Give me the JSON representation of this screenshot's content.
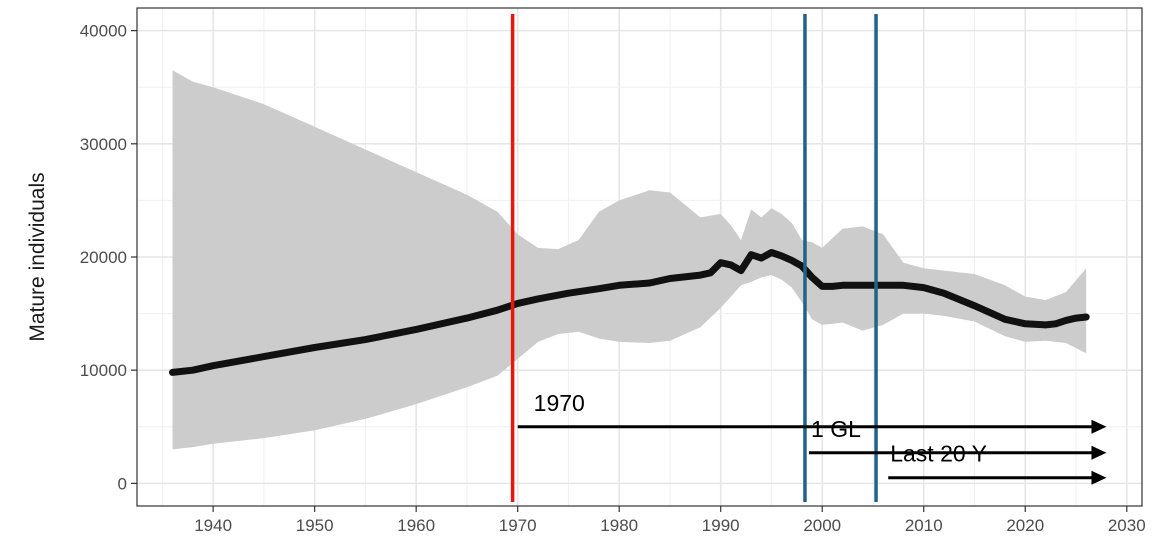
{
  "chart_data": {
    "type": "line",
    "title": "",
    "xlabel": "",
    "ylabel": "Mature individuals",
    "xlim": [
      1932.5,
      2031.5
    ],
    "ylim": [
      -2000,
      42000
    ],
    "grid": true,
    "x_ticks": [
      1940,
      1950,
      1960,
      1970,
      1980,
      1990,
      2000,
      2010,
      2020,
      2030
    ],
    "y_ticks": [
      0,
      10000,
      20000,
      30000,
      40000
    ],
    "series": [
      {
        "kind": "median",
        "color": "#000000",
        "x": [
          1936,
          1938,
          1940,
          1945,
          1950,
          1955,
          1960,
          1965,
          1968,
          1970,
          1972,
          1975,
          1978,
          1980,
          1983,
          1985,
          1988,
          1989,
          1990,
          1991,
          1992,
          1993,
          1994,
          1995,
          1996,
          1997,
          1998,
          1999,
          2000,
          2001,
          2002,
          2004,
          2006,
          2008,
          2010,
          2012,
          2015,
          2018,
          2020,
          2022,
          2023,
          2024,
          2025,
          2026
        ],
        "y": [
          9800,
          10000,
          10400,
          11200,
          12000,
          12700,
          13600,
          14600,
          15300,
          15900,
          16300,
          16800,
          17200,
          17500,
          17700,
          18100,
          18400,
          18600,
          19500,
          19300,
          18800,
          20200,
          19900,
          20400,
          20100,
          19700,
          19200,
          18200,
          17400,
          17400,
          17500,
          17500,
          17500,
          17500,
          17300,
          16800,
          15700,
          14500,
          14100,
          14000,
          14100,
          14400,
          14600,
          14700
        ]
      },
      {
        "kind": "interval",
        "color": "#cccccc",
        "x": [
          1936,
          1938,
          1940,
          1945,
          1950,
          1955,
          1960,
          1965,
          1968,
          1970,
          1972,
          1974,
          1976,
          1978,
          1980,
          1983,
          1985,
          1988,
          1990,
          1991,
          1992,
          1993,
          1994,
          1995,
          1996,
          1997,
          1998,
          1999,
          2000,
          2002,
          2004,
          2006,
          2008,
          2010,
          2012,
          2015,
          2018,
          2020,
          2022,
          2024,
          2026
        ],
        "upper": [
          36500,
          35500,
          35000,
          33500,
          31500,
          29500,
          27500,
          25500,
          24000,
          22000,
          20800,
          20700,
          21500,
          24000,
          25000,
          25900,
          25700,
          23500,
          23800,
          22800,
          21500,
          24200,
          23500,
          24300,
          23800,
          23000,
          21500,
          21300,
          20800,
          22500,
          22700,
          22000,
          19500,
          19000,
          18800,
          18500,
          17500,
          16500,
          16200,
          16900,
          19000
        ],
        "lower": [
          3000,
          3200,
          3500,
          4000,
          4700,
          5700,
          7000,
          8500,
          9500,
          11000,
          12500,
          13200,
          13400,
          12800,
          12500,
          12400,
          12600,
          13800,
          15500,
          16500,
          17500,
          17800,
          18200,
          18400,
          18000,
          17300,
          16000,
          14500,
          14000,
          14200,
          13500,
          14000,
          15000,
          15000,
          14800,
          14300,
          13000,
          12500,
          12600,
          12400,
          11500
        ]
      }
    ],
    "vertical_lines": [
      {
        "x": 1969.5,
        "color": "#e8160c"
      },
      {
        "x": 1998.3,
        "color": "#1f6487"
      },
      {
        "x": 2005.3,
        "color": "#1f6487"
      }
    ],
    "annotations": [
      {
        "text": "Last 20 Y",
        "arrow_from": 2006.5,
        "arrow_to": 2028,
        "y": 500
      },
      {
        "text": "1 GL",
        "arrow_from": 1998.7,
        "arrow_to": 2028,
        "y": 2700
      },
      {
        "text": "1970",
        "arrow_from": 1970,
        "arrow_to": 2028,
        "y": 5000
      }
    ]
  }
}
